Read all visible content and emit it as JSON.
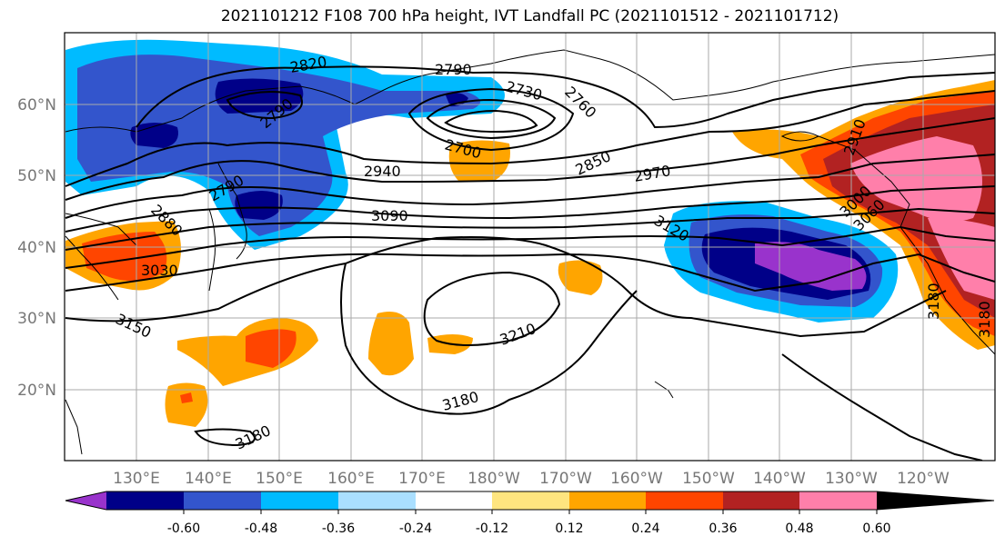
{
  "title": "2021101212 F108 700 hPa height, IVT Landfall PC (2021101512 - 2021101712)",
  "latitude_labels": [
    "60°N",
    "50°N",
    "40°N",
    "30°N",
    "20°N"
  ],
  "longitude_labels": [
    "130°E",
    "140°E",
    "150°E",
    "160°E",
    "170°E",
    "180°W",
    "170°W",
    "160°W",
    "150°W",
    "140°W",
    "130°W",
    "120°W"
  ],
  "contour_labels": [
    "2820",
    "2790",
    "2730",
    "2760",
    "2790",
    "2700",
    "2850",
    "2940",
    "2970",
    "3090",
    "3120",
    "2880",
    "2790",
    "3030",
    "3150",
    "3210",
    "3180",
    "3180",
    "2910",
    "3000",
    "3060",
    "3180",
    "3180"
  ],
  "colorbar": {
    "tick_labels": [
      "-0.60",
      "-0.48",
      "-0.36",
      "-0.24",
      "-0.12",
      "0.12",
      "0.24",
      "0.36",
      "0.48",
      "0.60"
    ],
    "colors": [
      "#9933cc",
      "#000088",
      "#3355cc",
      "#00bbff",
      "#aadfff",
      "#ffffff",
      "#ffe57f",
      "#ffa500",
      "#ff4500",
      "#b22222",
      "#ff7faa"
    ]
  }
}
